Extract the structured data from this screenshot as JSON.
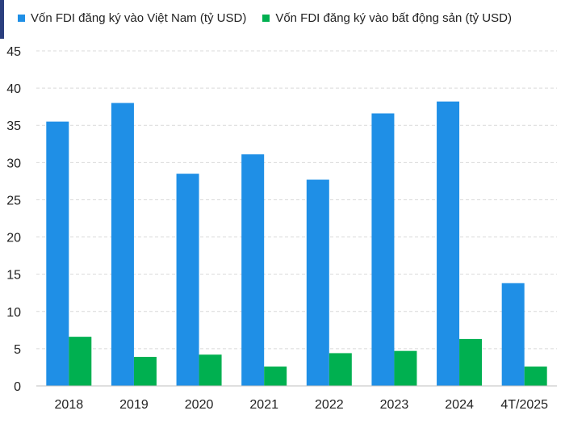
{
  "chart_data": {
    "type": "bar",
    "categories": [
      "2018",
      "2019",
      "2020",
      "2021",
      "2022",
      "2023",
      "2024",
      "4T/2025"
    ],
    "series": [
      {
        "name": "Vốn FDI đăng ký vào Việt Nam (tỷ USD)",
        "color": "#1f8fe6",
        "values": [
          35.5,
          38.0,
          28.5,
          31.1,
          27.7,
          36.6,
          38.2,
          13.8
        ]
      },
      {
        "name": "Vốn FDI đăng ký vào bất động sản (tỷ USD)",
        "color": "#00b050",
        "values": [
          6.6,
          3.9,
          4.2,
          2.6,
          4.4,
          4.7,
          6.3,
          2.6
        ]
      }
    ],
    "ylim": [
      0,
      45
    ],
    "yticks": [
      0,
      5,
      10,
      15,
      20,
      25,
      30,
      35,
      40,
      45
    ],
    "grid": true,
    "legend_position": "top-left"
  }
}
